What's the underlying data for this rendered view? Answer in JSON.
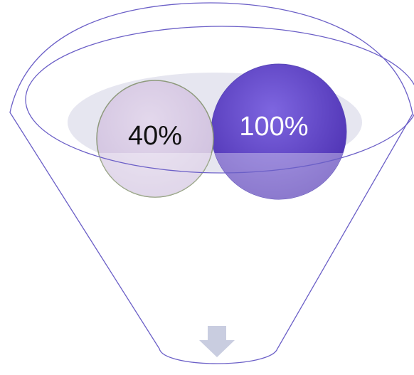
{
  "nodes": [
    {
      "label": "40%"
    },
    {
      "label": "100%"
    }
  ]
}
